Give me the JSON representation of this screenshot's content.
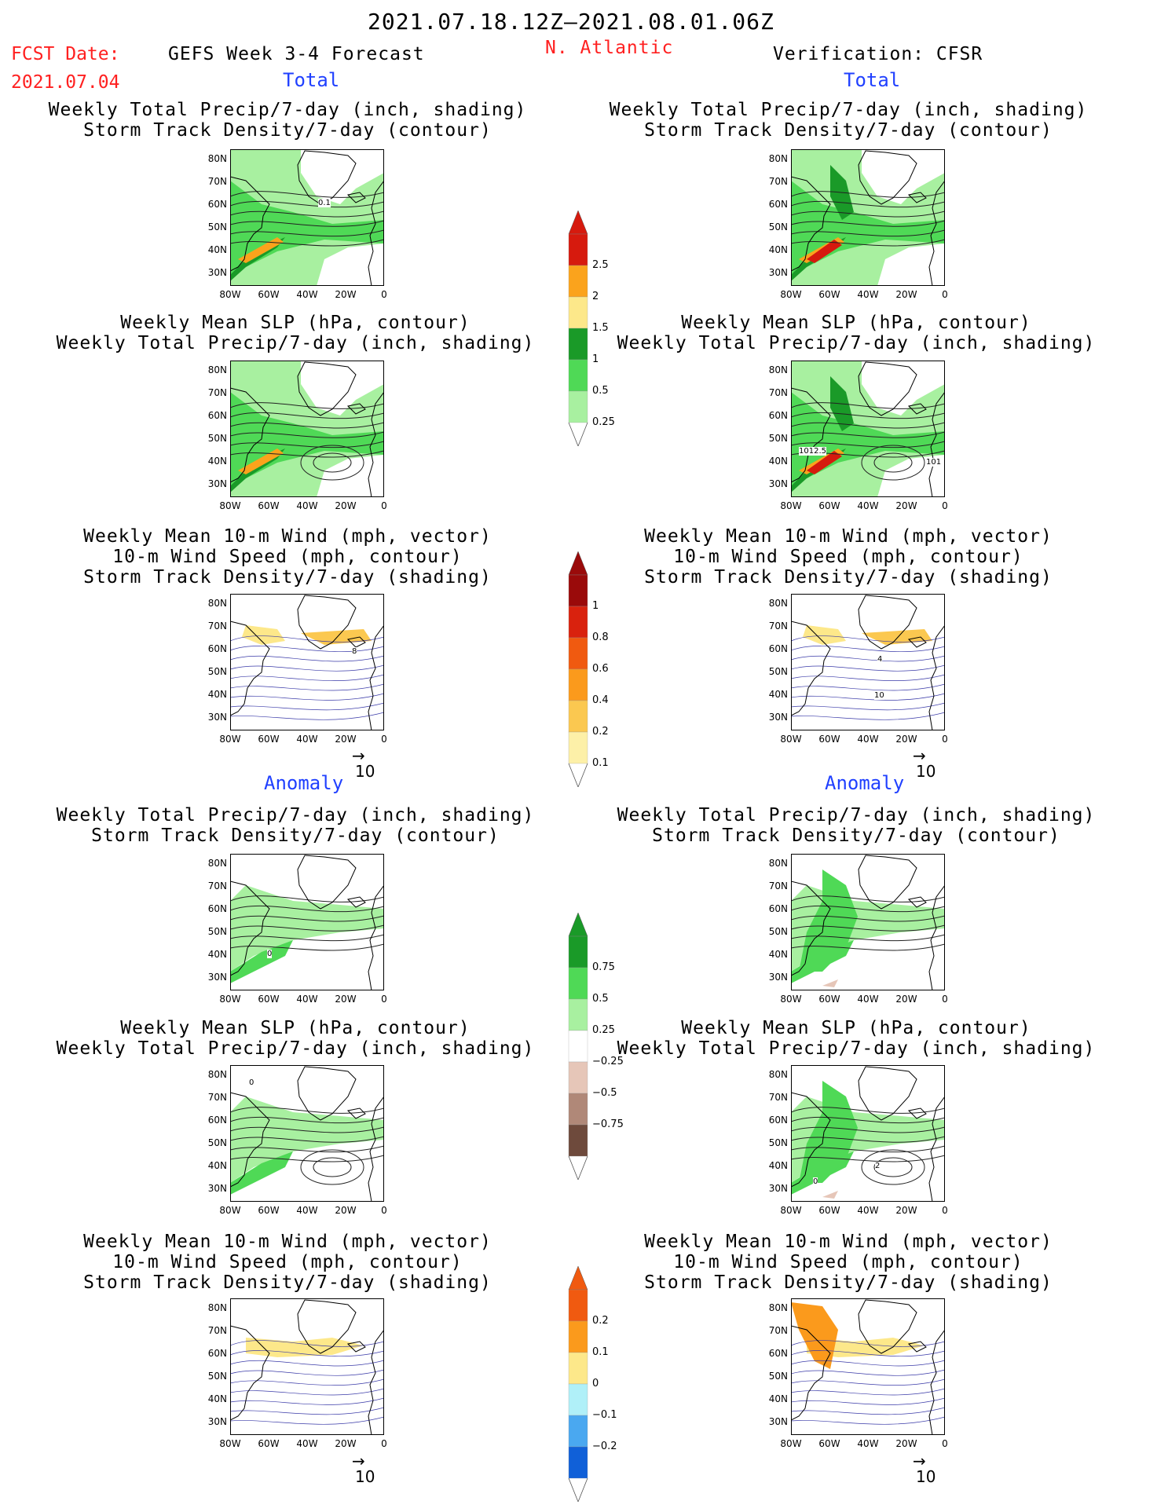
{
  "header": {
    "period": "2021.07.18.12Z–2021.08.01.06Z",
    "fcst_label": "FCST Date:",
    "fcst_date": "2021.07.04",
    "model": "GEFS Week 3-4 Forecast",
    "region": "N. Atlantic",
    "verification": "Verification: CFSR"
  },
  "sections": {
    "total": "Total",
    "anomaly": "Anomaly"
  },
  "panel_titles": {
    "precip_storm": [
      "Weekly Total Precip/7-day (inch, shading)",
      "Storm Track Density/7-day (contour)"
    ],
    "slp_precip": [
      "Weekly Mean SLP (hPa, contour)",
      "Weekly Total Precip/7-day (inch, shading)"
    ],
    "wind_storm": [
      "Weekly Mean 10-m Wind (mph, vector)",
      "10-m Wind Speed (mph, contour)",
      "Storm Track Density/7-day (shading)"
    ]
  },
  "axes": {
    "lat": [
      "80N",
      "70N",
      "60N",
      "50N",
      "40N",
      "30N"
    ],
    "lon": [
      "80W",
      "60W",
      "40W",
      "20W",
      "0"
    ]
  },
  "vector_ref": "10",
  "contour_labels": {
    "f_total_precip": "0.1",
    "o_total_slp_a": "1012.5",
    "o_total_slp_b": "101",
    "o_total_wind_a": "10",
    "o_total_wind_b": "4",
    "f_anom_precip": "0",
    "o_anom_slp_a": "2",
    "o_anom_slp_b": "0",
    "f_anom_slp": "0",
    "f_total_wind": "8"
  },
  "colorbars": {
    "total_precip": {
      "ticks": [
        "2.5",
        "2",
        "1.5",
        "1",
        "0.5",
        "0.25"
      ],
      "colors": [
        "#d61a0e",
        "#fba31c",
        "#fde88a",
        "#1a9a28",
        "#4fd956",
        "#a8f0a0"
      ]
    },
    "total_storm": {
      "ticks": [
        "1",
        "0.8",
        "0.6",
        "0.4",
        "0.2",
        "0.1"
      ],
      "colors": [
        "#9a0a0a",
        "#d9220e",
        "#f05a10",
        "#fb9a1c",
        "#fbc850",
        "#fdf0a8"
      ]
    },
    "anom_precip": {
      "ticks": [
        "0.75",
        "0.5",
        "0.25",
        "−0.25",
        "−0.5",
        "−0.75"
      ],
      "colors": [
        "#1a9a28",
        "#4fd956",
        "#a8f0a0",
        "#ffffff",
        "#e6c6b8",
        "#b08878",
        "#6e4a3c"
      ]
    },
    "anom_storm": {
      "ticks": [
        "0.2",
        "0.1",
        "0",
        "−0.1",
        "−0.2"
      ],
      "colors": [
        "#f05a10",
        "#fb9a1c",
        "#fde88a",
        "#b0f0f8",
        "#4aa8f0",
        "#1060d8"
      ]
    }
  }
}
